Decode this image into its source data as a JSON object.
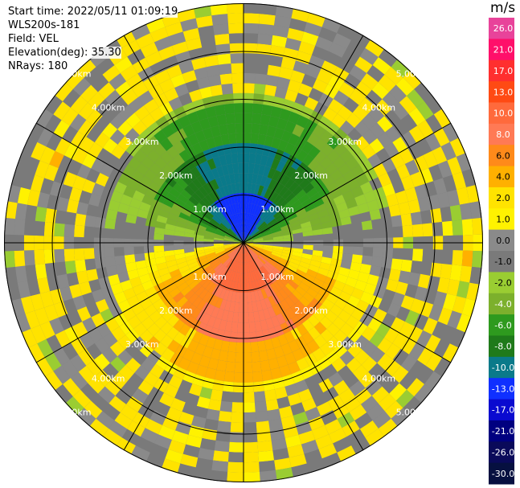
{
  "info": {
    "start_time": "Start time: 2022/05/11 01:09:19",
    "site": "WLS200s-181",
    "field": "Field: VEL",
    "elevation": "Elevation(deg): 35.30",
    "nrays": "NRays: 180"
  },
  "chart_data": {
    "type": "heatmap",
    "projection": "polar PPI",
    "title": "",
    "unit": "m/s",
    "rings_km": [
      1,
      2,
      3,
      4,
      5
    ],
    "ring_labels": [
      "1.00km",
      "2.00km",
      "3.00km",
      "4.00km",
      "5.00km"
    ],
    "spokes_deg": [
      0,
      30,
      60,
      90,
      120,
      150,
      180,
      210,
      240,
      270,
      300,
      330
    ],
    "colorbar": {
      "ticks": [
        "26.0",
        "21.0",
        "17.0",
        "13.0",
        "10.0",
        "8.0",
        "6.0",
        "4.0",
        "2.0",
        "1.0",
        "0.0",
        "-1.0",
        "-2.0",
        "-4.0",
        "-6.0",
        "-8.0",
        "-10.0",
        "-13.0",
        "-17.0",
        "-21.0",
        "-26.0",
        "-30.0"
      ],
      "colors": [
        "#e8439a",
        "#ff0f6a",
        "#ff2f2f",
        "#ff4a14",
        "#ff6a3c",
        "#ff7a55",
        "#ff8a1a",
        "#ffb000",
        "#ffe300",
        "#fff200",
        "#8a8a8a",
        "#7a7a7a",
        "#9acd32",
        "#7cb02c",
        "#2e9a1e",
        "#1f7a1a",
        "#0a7a8a",
        "#1030ff",
        "#0a0ad0",
        "#000080",
        "#0a0a5a",
        "#061040"
      ]
    },
    "pattern": {
      "center_bins": [
        {
          "range_km": "0-1",
          "north_ms": -10,
          "south_ms": 13
        },
        {
          "range_km": "1-2",
          "north_ms": -6,
          "south_ms": 10
        },
        {
          "range_km": "2-3",
          "north_ms": -2,
          "south_ms": 6
        },
        {
          "range_km": "3-4",
          "north_ms": 1,
          "south_ms": 2
        },
        {
          "range_km": "4-5",
          "north_ms": 2,
          "south_ms": 1
        }
      ]
    }
  }
}
